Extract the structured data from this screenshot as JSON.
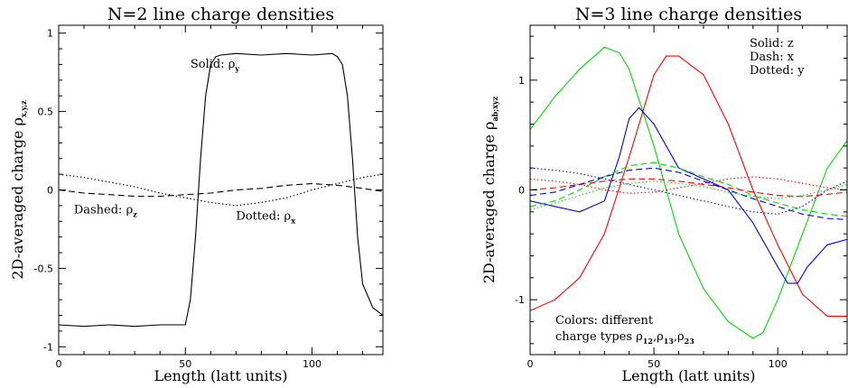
{
  "chart_data": [
    {
      "type": "line",
      "title": "N=2 line charge densities",
      "xlabel": "Length (latt units)",
      "ylabel": "2D-averaged charge ρ",
      "ylabel_sub": "x,y,z",
      "xlim": [
        0,
        128
      ],
      "ylim": [
        -1.05,
        1.05
      ],
      "xticks": [
        0,
        50,
        100
      ],
      "yticks": [
        -1,
        -0.5,
        0,
        0.5,
        1
      ],
      "annotations": [
        {
          "text": "Solid: ρ",
          "sub": "y",
          "x": 52,
          "y": 0.78
        },
        {
          "text": "Dashed: ρ",
          "sub": "z",
          "x": 6,
          "y": -0.15
        },
        {
          "text": "Dotted: ρ",
          "sub": "x",
          "x": 70,
          "y": -0.19
        }
      ],
      "series": [
        {
          "style": "solid",
          "color": "#000000",
          "x": [
            0,
            10,
            20,
            30,
            40,
            50,
            52,
            54,
            56,
            58,
            60,
            62,
            64,
            70,
            80,
            90,
            100,
            108,
            110,
            112,
            114,
            116,
            118,
            120,
            124,
            128
          ],
          "y": [
            -0.86,
            -0.87,
            -0.86,
            -0.87,
            -0.86,
            -0.86,
            -0.7,
            -0.3,
            0.2,
            0.6,
            0.8,
            0.85,
            0.86,
            0.87,
            0.86,
            0.87,
            0.86,
            0.87,
            0.85,
            0.8,
            0.6,
            0.2,
            -0.3,
            -0.6,
            -0.75,
            -0.8
          ]
        },
        {
          "style": "dashed",
          "color": "#000000",
          "x": [
            0,
            10,
            20,
            30,
            40,
            50,
            60,
            70,
            80,
            90,
            100,
            110,
            120,
            128
          ],
          "y": [
            0.0,
            -0.02,
            -0.03,
            -0.04,
            -0.04,
            -0.03,
            -0.02,
            0.0,
            0.01,
            0.03,
            0.04,
            0.03,
            0.01,
            -0.01
          ]
        },
        {
          "style": "dotted",
          "color": "#000000",
          "x": [
            0,
            10,
            20,
            30,
            40,
            50,
            60,
            70,
            80,
            90,
            100,
            110,
            120,
            128
          ],
          "y": [
            0.1,
            0.08,
            0.05,
            0.02,
            -0.02,
            -0.05,
            -0.08,
            -0.1,
            -0.08,
            -0.05,
            0.0,
            0.04,
            0.08,
            0.1
          ]
        }
      ]
    },
    {
      "type": "line",
      "title": "N=3 line charge densities",
      "xlabel": "Length (latt units)",
      "ylabel": "2D-averaged charge ρ",
      "ylabel_sub": "ab;xyz",
      "xlim": [
        0,
        128
      ],
      "ylim": [
        -1.5,
        1.5
      ],
      "xticks": [
        0,
        50,
        100
      ],
      "yticks": [
        -1,
        0,
        1
      ],
      "legend_text": [
        "Solid: z",
        "Dash: x",
        "Dotted: y"
      ],
      "colors_note": [
        "Colors:  different",
        "charge types ρ"
      ],
      "colors_subs": [
        "12",
        "13",
        "23"
      ],
      "series": [
        {
          "style": "solid",
          "color": "#00dd00",
          "x": [
            0,
            10,
            20,
            30,
            36,
            40,
            50,
            60,
            70,
            80,
            90,
            94,
            100,
            110,
            120,
            128
          ],
          "y": [
            0.55,
            0.85,
            1.1,
            1.3,
            1.25,
            1.1,
            0.4,
            -0.4,
            -0.9,
            -1.2,
            -1.35,
            -1.3,
            -1.0,
            -0.4,
            0.2,
            0.45
          ]
        },
        {
          "style": "solid",
          "color": "#ff0000",
          "x": [
            0,
            10,
            20,
            30,
            40,
            50,
            55,
            60,
            70,
            80,
            90,
            100,
            110,
            120,
            128
          ],
          "y": [
            -1.1,
            -1.0,
            -0.8,
            -0.4,
            0.3,
            1.05,
            1.22,
            1.22,
            1.05,
            0.6,
            0.0,
            -0.5,
            -0.95,
            -1.15,
            -1.15
          ]
        },
        {
          "style": "solid",
          "color": "#0000ff",
          "x": [
            0,
            10,
            20,
            30,
            36,
            40,
            44,
            50,
            60,
            70,
            80,
            90,
            100,
            104,
            108,
            112,
            120,
            128
          ],
          "y": [
            -0.1,
            -0.15,
            -0.2,
            -0.1,
            0.3,
            0.65,
            0.75,
            0.6,
            0.2,
            0.1,
            0.0,
            -0.3,
            -0.7,
            -0.85,
            -0.85,
            -0.7,
            -0.5,
            -0.45
          ]
        },
        {
          "style": "dashed",
          "color": "#00dd00",
          "x": [
            0,
            10,
            20,
            30,
            40,
            50,
            60,
            70,
            80,
            90,
            100,
            110,
            120,
            128
          ],
          "y": [
            -0.15,
            -0.1,
            0.0,
            0.12,
            0.22,
            0.25,
            0.2,
            0.12,
            0.05,
            -0.05,
            -0.12,
            -0.18,
            -0.22,
            -0.24
          ]
        },
        {
          "style": "dashed",
          "color": "#ff0000",
          "x": [
            0,
            10,
            20,
            30,
            40,
            50,
            60,
            70,
            80,
            90,
            100,
            110,
            120,
            128
          ],
          "y": [
            0.0,
            0.02,
            0.05,
            0.08,
            0.1,
            0.1,
            0.08,
            0.05,
            0.02,
            -0.02,
            -0.05,
            -0.06,
            -0.04,
            -0.02
          ]
        },
        {
          "style": "dashed",
          "color": "#0000ff",
          "x": [
            0,
            10,
            20,
            30,
            40,
            50,
            60,
            70,
            80,
            90,
            100,
            110,
            120,
            128
          ],
          "y": [
            -0.05,
            -0.02,
            0.05,
            0.12,
            0.18,
            0.2,
            0.16,
            0.08,
            0.0,
            -0.08,
            -0.15,
            -0.22,
            -0.26,
            -0.27
          ]
        },
        {
          "style": "dotted",
          "color": "#0000ff",
          "x": [
            0,
            10,
            20,
            30,
            40,
            50,
            60,
            70,
            80,
            90,
            100,
            110,
            120,
            128
          ],
          "y": [
            0.2,
            0.18,
            0.15,
            0.1,
            0.05,
            0.0,
            -0.05,
            -0.1,
            -0.15,
            -0.2,
            -0.22,
            -0.15,
            0.0,
            0.08
          ]
        },
        {
          "style": "dotted",
          "color": "#00dd00",
          "x": [
            0,
            10,
            20,
            30,
            40,
            50,
            60,
            70,
            80,
            90,
            100,
            110,
            120,
            128
          ],
          "y": [
            -0.18,
            -0.12,
            -0.05,
            0.02,
            0.06,
            0.08,
            0.06,
            0.03,
            -0.02,
            -0.06,
            -0.08,
            -0.05,
            0.0,
            0.05
          ]
        },
        {
          "style": "dotted",
          "color": "#ff0000",
          "x": [
            0,
            10,
            20,
            30,
            40,
            50,
            60,
            70,
            80,
            90,
            100,
            110,
            120,
            128
          ],
          "y": [
            0.1,
            0.08,
            0.05,
            0.0,
            -0.03,
            -0.02,
            0.02,
            0.06,
            0.1,
            0.12,
            0.1,
            0.06,
            0.02,
            0.0
          ]
        }
      ]
    }
  ]
}
